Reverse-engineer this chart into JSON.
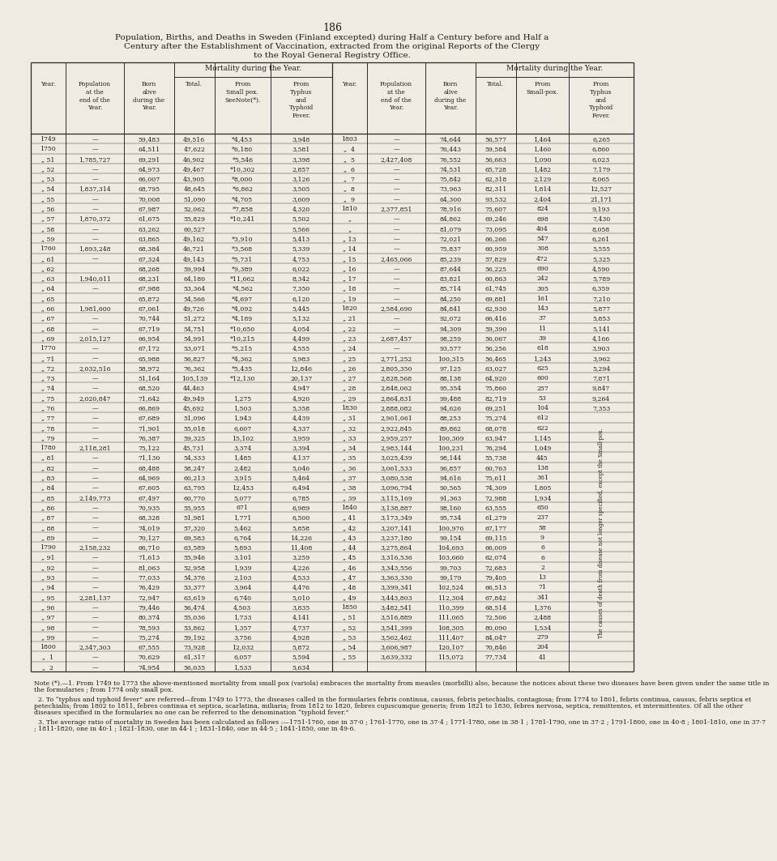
{
  "page_number": "186",
  "title_lines": [
    "Population, Births, and Deaths in Sweden (Finland excepted) during Half a Century before and Half a",
    "Century after the Establishment of Vaccination, extracted from the original Reports of the Clergy",
    "to the Royal General Registry Office."
  ],
  "mortality_header": "Mortality during the Year.",
  "col_headers_left": [
    "Year.",
    "Population\nat the\nend of the\nYear.",
    "Born\nalive\nduring the\nYear.",
    "Total.",
    "From\nSmall pox.\nSeeNote(*).",
    "From\nTyphus\nand\nTyphoid\nFever."
  ],
  "col_headers_right": [
    "Year.",
    "Population\nat the\nend of the\nYear.",
    "Born\nalive\nduring the\nYear.",
    "Total.",
    "From\nSmall-pox.",
    "From\nTyphus\nand\nTyphoid\nFever."
  ],
  "left_data": [
    [
      "1749",
      "—",
      "59,483",
      "49,516",
      "*4,453",
      "3,948"
    ],
    [
      "1750",
      "—",
      "64,511",
      "47,622",
      "*6,180",
      "3,581"
    ],
    [
      "„ 51",
      "1,785,727",
      "69,291",
      "46,902",
      "*5,546",
      "3,398"
    ],
    [
      "„ 52",
      "—",
      "64,973",
      "49,467",
      "*10,302",
      "2,857"
    ],
    [
      "„ 53",
      "—",
      "66,007",
      "43,905",
      "*8,000",
      "3,126"
    ],
    [
      "„ 54",
      "1,837,314",
      "68,795",
      "48,645",
      "*6,862",
      "3,505"
    ],
    [
      "„ 55",
      "—",
      "70,008",
      "51,090",
      "*4,705",
      "3,609"
    ],
    [
      "„ 56",
      "—",
      "67,987",
      "52,062",
      "*7,858",
      "4,320"
    ],
    [
      "„ 57",
      "1,870,372",
      "61,675",
      "55,829",
      "*10,241",
      "5,502"
    ],
    [
      "„ 58",
      "—",
      "63,262",
      "60,527",
      "",
      "5,566"
    ],
    [
      "„ 59",
      "—",
      "63,865",
      "49,162",
      "*3,910",
      "5,413"
    ],
    [
      "1760",
      "1,893,248",
      "68,384",
      "46,721",
      "*3,568",
      "5,339"
    ],
    [
      "„ 61",
      "—",
      "67,324",
      "49,143",
      "*5,731",
      "4,753"
    ],
    [
      "„ 62",
      "",
      "68,268",
      "59,994",
      "*9,389",
      "6,022"
    ],
    [
      "„ 63",
      "1,940,011",
      "68,231",
      "64,180",
      "*11,662",
      "8,342"
    ],
    [
      "„ 64",
      "—",
      "67,988",
      "53,364",
      "*4,562",
      "7,350"
    ],
    [
      "„ 65",
      "",
      "65,872",
      "54,566",
      "*4,697",
      "6,120"
    ],
    [
      "„ 66",
      "1,981,600",
      "67,061",
      "49,726",
      "*4,092",
      "5,445"
    ],
    [
      "„ 67",
      "—",
      "70,744",
      "51,272",
      "*4,189",
      "5,132"
    ],
    [
      "„ 68",
      "—",
      "67,719",
      "54,751",
      "*10,650",
      "4,054"
    ],
    [
      "„ 69",
      "2,015,127",
      "66,954",
      "54,991",
      "*10,215",
      "4,499"
    ],
    [
      "1770",
      "—",
      "67,172",
      "53,071",
      "*5,215",
      "4,555"
    ],
    [
      "„ 71",
      "—",
      "65,988",
      "56,827",
      "*4,362",
      "5,983"
    ],
    [
      "„ 72",
      "2,032,516",
      "58,972",
      "76,362",
      "*5,435",
      "12,846"
    ],
    [
      "„ 73",
      "—",
      "51,164",
      "105,139",
      "*12,130",
      "20,137"
    ],
    [
      "„ 74",
      "—",
      "68,520",
      "44,463",
      "",
      "4,947"
    ],
    [
      "„ 75",
      "2,020,847",
      "71,642",
      "49,949",
      "1,275",
      "4,920"
    ],
    [
      "„ 76",
      "—",
      "66,869",
      "45,692",
      "1,503",
      "5,358"
    ],
    [
      "„ 77",
      "—",
      "67,689",
      "51,096",
      "1,943",
      "4,439"
    ],
    [
      "„ 78",
      "—",
      "71,901",
      "55,018",
      "6,607",
      "4,337"
    ],
    [
      "„ 79",
      "—",
      "76,387",
      "59,325",
      "15,102",
      "3,959"
    ],
    [
      "1780",
      "2,118,281",
      "75,122",
      "45,731",
      "3,374",
      "3,394"
    ],
    [
      "„ 81",
      "—",
      "71,130",
      "54,333",
      "1,485",
      "4,137"
    ],
    [
      "„ 82",
      "—",
      "68,488",
      "58,247",
      "2,482",
      "5,046"
    ],
    [
      "„ 83",
      "—",
      "64,969",
      "60,213",
      "3,915",
      "5,464"
    ],
    [
      "„ 84",
      "—",
      "67,605",
      "63,795",
      "12,453",
      "6,494"
    ],
    [
      "„ 85",
      "2,149,773",
      "67,497",
      "60,770",
      "5,077",
      "6,785"
    ],
    [
      "„ 86",
      "—",
      "70,935",
      "55,955",
      "671",
      "6,989"
    ],
    [
      "„ 87",
      "—",
      "68,328",
      "51,981",
      "1,771",
      "6,500"
    ],
    [
      "„ 88",
      "—",
      "74,019",
      "57,320",
      "5,462",
      "5,858"
    ],
    [
      "„ 89",
      "—",
      "70,127",
      "69,583",
      "6,764",
      "14,226"
    ],
    [
      "1790",
      "2,158,232",
      "66,710",
      "63,589",
      "5,893",
      "11,408"
    ],
    [
      "„ 91",
      "—",
      "71,613",
      "55,946",
      "3,101",
      "3,259"
    ],
    [
      "„ 92",
      "—",
      "81,063",
      "52,958",
      "1,939",
      "4,226"
    ],
    [
      "„ 93",
      "—",
      "77,033",
      "54,376",
      "2,103",
      "4,533"
    ],
    [
      "„ 94",
      "—",
      "76,429",
      "53,377",
      "3,964",
      "4,476"
    ],
    [
      "„ 95",
      "2,281,137",
      "72,947",
      "63,619",
      "6,740",
      "5,010"
    ],
    [
      "„ 96",
      "—",
      "79,446",
      "56,474",
      "4,503",
      "3,835"
    ],
    [
      "„ 97",
      "—",
      "80,374",
      "55,036",
      "1,733",
      "4,141"
    ],
    [
      "„ 98",
      "—",
      "78,593",
      "53,862",
      "1,357",
      "4,737"
    ],
    [
      "„ 99",
      "—",
      "75,274",
      "59,192",
      "3,756",
      "4,928"
    ],
    [
      "1800",
      "2,347,303",
      "67,555",
      "73,928",
      "12,032",
      "5,872"
    ],
    [
      "„  1",
      "—",
      "70,629",
      "61,317",
      "6,057",
      "5,594"
    ],
    [
      "„  2",
      "—",
      "74,954",
      "56,035",
      "1,533",
      "5,634"
    ]
  ],
  "right_data": [
    [
      "1803",
      "—",
      "74,644",
      "56,577",
      "1,464",
      "6,265"
    ],
    [
      "„  4",
      "—",
      "76,443",
      "59,584",
      "1,460",
      "6,860"
    ],
    [
      "„  5",
      "2,427,408",
      "76,552",
      "56,663",
      "1,090",
      "6,023"
    ],
    [
      "„  6",
      "—",
      "74,531",
      "65,728",
      "1,482",
      "7,179"
    ],
    [
      "„  7",
      "—",
      "75,842",
      "62,318",
      "2,129",
      "8,065"
    ],
    [
      "„  8",
      "—",
      "73,963",
      "82,311",
      "1,814",
      "12,527"
    ],
    [
      "„  9",
      "—",
      "64,300",
      "93,532",
      "2,404",
      "21,171"
    ],
    [
      "1810",
      "2,377,851",
      "78,916",
      "75,607",
      "824",
      "9,193"
    ],
    [
      "„",
      "—",
      "84,862",
      "69,246",
      "698",
      "7,430"
    ],
    [
      "„",
      "—",
      "81,079",
      "73,095",
      "404",
      "8,058"
    ],
    [
      "„ 13",
      "—",
      "72,021",
      "66,266",
      "547",
      "6,261"
    ],
    [
      "„ 14",
      "—",
      "75,837",
      "60,959",
      "308",
      "5,555"
    ],
    [
      "„ 15",
      "2,465,066",
      "85,239",
      "57,829",
      "472",
      "5,325"
    ],
    [
      "„ 16",
      "—",
      "87,644",
      "56,225",
      "690",
      "4,590"
    ],
    [
      "„ 17",
      "—",
      "83,821",
      "60,863",
      "242",
      "5,789"
    ],
    [
      "„ 18",
      "—",
      "85,714",
      "61,745",
      "305",
      "6,359"
    ],
    [
      "„ 19",
      "—",
      "84,250",
      "69,881",
      "161",
      "7,210"
    ],
    [
      "1820",
      "2,584,690",
      "84,841",
      "62,930",
      "143",
      "5,877"
    ],
    [
      "„ 21",
      "—",
      "92,072",
      "66,416",
      "37",
      "5,853"
    ],
    [
      "„ 22",
      "—",
      "94,309",
      "59,390",
      "11",
      "5,141"
    ],
    [
      "„ 23",
      "2,687,457",
      "98,259",
      "56,067",
      "39",
      "4,166"
    ],
    [
      "„ 24",
      "—",
      "93,577",
      "56,256",
      "618",
      "3,903"
    ],
    [
      "„ 25",
      "2,771,252",
      "100,315",
      "56,465",
      "1,243",
      "3,962"
    ],
    [
      "„ 26",
      "2,805,350",
      "97,125",
      "63,027",
      "625",
      "5,294"
    ],
    [
      "„ 27",
      "2,828,568",
      "88,138",
      "64,920",
      "600",
      "7,871"
    ],
    [
      "„ 28",
      "2,848,062",
      "95,354",
      "75,860",
      "257",
      "9,847"
    ],
    [
      "„ 29",
      "2,864,831",
      "99,488",
      "82,719",
      "53",
      "9,264"
    ],
    [
      "1830",
      "2,888,082",
      "94,626",
      "69,251",
      "104",
      "7,353"
    ],
    [
      "„ 31",
      "2,901,061",
      "88,253",
      "75,274",
      "612",
      ""
    ],
    [
      "„ 32",
      "2,922,845",
      "89,862",
      "68,078",
      "622",
      ""
    ],
    [
      "„ 33",
      "2,959,257",
      "100,309",
      "63,947",
      "1,145",
      ""
    ],
    [
      "„ 34",
      "2,983,144",
      "100,231",
      "76,294",
      "1,049",
      ""
    ],
    [
      "„ 35",
      "3,025,439",
      "98,144",
      "55,738",
      "445",
      ""
    ],
    [
      "„ 36",
      "3,061,533",
      "96,857",
      "60,763",
      "138",
      ""
    ],
    [
      "„ 37",
      "3,080,538",
      "94,616",
      "75,611",
      "361",
      ""
    ],
    [
      "„ 38",
      "3,096,794",
      "90,565",
      "74,309",
      "1,805",
      ""
    ],
    [
      "„ 39",
      "3,115,169",
      "91,363",
      "72,988",
      "1,934",
      ""
    ],
    [
      "1840",
      "3,138,887",
      "98,160",
      "63,555",
      "650",
      ""
    ],
    [
      "„ 41",
      "3,173,349",
      "95,734",
      "61,279",
      "237",
      ""
    ],
    [
      "„ 42",
      "3,207,141",
      "100,976",
      "67,177",
      "58",
      ""
    ],
    [
      "„ 43",
      "3,237,180",
      "99,154",
      "69,115",
      "9",
      ""
    ],
    [
      "„ 44",
      "3,275,864",
      "104,693",
      "66,009",
      "6",
      ""
    ],
    [
      "„ 45",
      "3,316,536",
      "103,660",
      "62,074",
      "6",
      ""
    ],
    [
      "„ 46",
      "3,343,556",
      "99,703",
      "72,683",
      "2",
      ""
    ],
    [
      "„ 47",
      "3,363,330",
      "99,179",
      "79,405",
      "13",
      ""
    ],
    [
      "„ 48",
      "3,399,341",
      "102,524",
      "66,513",
      "71",
      ""
    ],
    [
      "„ 49",
      "3,443,803",
      "112,304",
      "67,842",
      "341",
      ""
    ],
    [
      "1850",
      "3,482,541",
      "110,399",
      "68,514",
      "1,376",
      ""
    ],
    [
      "„ 51",
      "3,516,889",
      "111,065",
      "72,506",
      "2,488",
      ""
    ],
    [
      "„ 52",
      "3,541,399",
      "108,305",
      "80,090",
      "1,534",
      ""
    ],
    [
      "„ 53",
      "3,562,462",
      "111,407",
      "84,047",
      "279",
      ""
    ],
    [
      "„ 54",
      "3,606,987",
      "120,107",
      "70,846",
      "204",
      ""
    ],
    [
      "„ 55",
      "3,639,332",
      "115,072",
      "77,734",
      "41",
      ""
    ]
  ],
  "rotated_label": "The causes of death from disease not longer specified, except the Small-pox.",
  "note_para1": "Note (*).—1. From 1749 to 1773 the above-mentioned mortality from small pox (variola) embraces the mortality from measles (morbilli) also, because the notices about these two diseases have been given under the same title in the formularies ; from 1774 only small pox.",
  "note_para2": "2. To “typhus and typhoid fever” are referred—from 1749 to 1773, the diseases called in the formularies febris continua, causus, febris petechialis, contagiosa; from 1774 to 1801, febris continua, causus, febris septica et petechialis; from 1802 to 1811, febres continua et septica, scarlatina, miliaria; from 1812 to 1820, febres cujuscumque generis; from 1821 to 1830, febres nervosa, septica, remittentes, et intermittentes. Of all the other diseases specified in the formularies no one can be referred to the denomination “typhoid fever.”",
  "note_para3": "3. The average ratio of mortality in Sweden has been calculated as follows :—1751-1760, one in 37·0 ; 1761-1770, one in 37·4 ; 1771-1780, one in 38·1 ; 1781-1790, one in 37·2 ; 1791-1800, one in 40·8 ; 1801-1810, one in 37·7 ; 1811-1820, one in 40·1 ; 1821-1830, one in 44·1 ; 1831-1840, one in 44·5 ; 1841-1850, one in 49·6.",
  "bg_color": "#f0ebe0",
  "text_color": "#1a1a1a",
  "line_color": "#2a2a2a"
}
